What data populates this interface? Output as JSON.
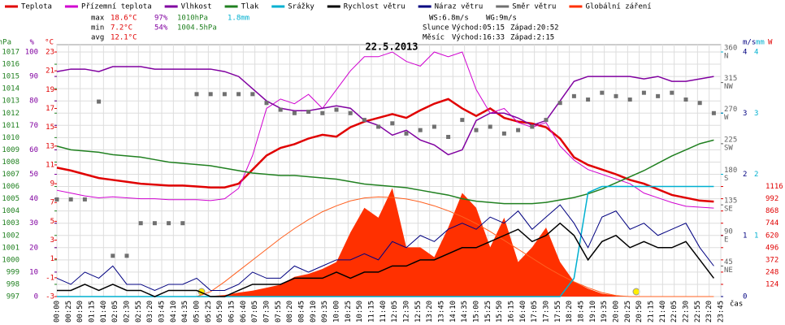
{
  "chart_data": {
    "type": "line",
    "title": "22.5.2013",
    "stats": {
      "max": [
        "max",
        "18.6°C",
        "97%",
        "1010hPa",
        "1.8mm"
      ],
      "min": [
        "min",
        "7.2°C",
        "54%",
        "1004.5hPa"
      ],
      "avg": [
        "avg",
        "12.1°C"
      ]
    },
    "info": [
      [
        "WS:6.8m/s",
        "WG:9m/s"
      ],
      [
        "Slunce",
        "Východ:05:15",
        "Západ:20:52"
      ],
      [
        "Měsíc",
        "Východ:16:33",
        "Západ:2:15"
      ]
    ],
    "axis_labels": {
      "hpa": "hPa",
      "pct": "%",
      "degc": "°C",
      "ms": "m/s",
      "mm": "mm",
      "w": "W",
      "time": "čas"
    },
    "xticks": [
      "00:00",
      "00:25",
      "00:50",
      "01:15",
      "01:40",
      "02:05",
      "02:30",
      "02:55",
      "03:20",
      "03:45",
      "04:10",
      "04:35",
      "05:00",
      "05:25",
      "05:50",
      "06:15",
      "06:40",
      "07:05",
      "07:30",
      "07:55",
      "08:20",
      "08:45",
      "09:10",
      "09:35",
      "10:00",
      "10:25",
      "10:50",
      "11:15",
      "11:40",
      "12:05",
      "12:30",
      "12:55",
      "13:20",
      "13:45",
      "14:10",
      "14:35",
      "15:00",
      "15:25",
      "15:50",
      "16:15",
      "16:40",
      "17:05",
      "17:30",
      "17:55",
      "18:20",
      "18:45",
      "19:10",
      "19:35",
      "20:00",
      "20:25",
      "20:50",
      "21:15",
      "21:40",
      "22:05",
      "22:30",
      "22:55",
      "23:20",
      "23:45"
    ],
    "x": [
      "00:00",
      "00:30",
      "01:00",
      "01:30",
      "02:00",
      "02:30",
      "03:00",
      "03:30",
      "04:00",
      "04:30",
      "05:00",
      "05:30",
      "06:00",
      "06:30",
      "07:00",
      "07:30",
      "08:00",
      "08:30",
      "09:00",
      "09:30",
      "10:00",
      "10:30",
      "11:00",
      "11:30",
      "12:00",
      "12:30",
      "13:00",
      "13:30",
      "14:00",
      "14:30",
      "15:00",
      "15:30",
      "16:00",
      "16:30",
      "17:00",
      "17:30",
      "18:00",
      "18:30",
      "19:00",
      "19:30",
      "20:00",
      "20:30",
      "21:00",
      "21:30",
      "22:00",
      "22:30",
      "23:00",
      "23:30"
    ],
    "axes": {
      "hpa": {
        "lim": [
          997,
          1017
        ],
        "ticks": [
          997,
          998,
          999,
          1000,
          1001,
          1002,
          1003,
          1004,
          1005,
          1006,
          1007,
          1008,
          1009,
          1010,
          1011,
          1012,
          1013,
          1014,
          1015,
          1016,
          1017
        ],
        "color": "#208020",
        "side": "left",
        "col": 24
      },
      "pct": {
        "lim": [
          0,
          100
        ],
        "ticks": [
          0,
          10,
          20,
          30,
          40,
          50,
          60,
          70,
          80,
          90,
          100
        ],
        "color": "#8000a0",
        "side": "left",
        "col": 47
      },
      "degc": {
        "lim": [
          -3,
          23
        ],
        "ticks": [
          -3,
          -1,
          1,
          3,
          5,
          7,
          9,
          11,
          13,
          15,
          17,
          19,
          21,
          23
        ],
        "color": "#e00000",
        "side": "left",
        "col": 67
      },
      "dir": {
        "lim": [
          0,
          360
        ],
        "ticks": [
          {
            "value": 45,
            "label": "NE"
          },
          {
            "value": 90,
            "label": "E"
          },
          {
            "value": 135,
            "label": "SE"
          },
          {
            "value": 180,
            "label": "S"
          },
          {
            "value": 225,
            "label": "SW"
          },
          {
            "value": 270,
            "label": "W"
          },
          {
            "value": 315,
            "label": "NW"
          },
          {
            "value": 360,
            "label": "N"
          }
        ],
        "color": "#606060",
        "side": "right",
        "col": 891
      },
      "ms": {
        "lim": [
          0,
          4
        ],
        "ticks": [
          0,
          1,
          2,
          3,
          4
        ],
        "color": "#000080",
        "side": "right",
        "col": 914
      },
      "mm": {
        "lim": [
          0,
          4
        ],
        "ticks": [
          1,
          2,
          3,
          4
        ],
        "color": "#00b0d0",
        "side": "right",
        "col": 928
      },
      "w": {
        "lim": [
          0,
          2480
        ],
        "ticks": [
          124,
          248,
          372,
          496,
          620,
          744,
          868,
          992,
          1116
        ],
        "color": "#e00000",
        "side": "right",
        "col": 942
      }
    },
    "series": [
      {
        "style": "area",
        "name": "Globální záření",
        "color": "#ff3000",
        "axis": "w",
        "values": [
          0,
          0,
          0,
          0,
          0,
          0,
          0,
          0,
          0,
          0,
          0,
          5,
          15,
          40,
          60,
          90,
          120,
          200,
          230,
          280,
          350,
          650,
          900,
          800,
          1100,
          500,
          500,
          400,
          700,
          1050,
          900,
          500,
          800,
          350,
          500,
          700,
          350,
          150,
          80,
          30,
          10,
          0,
          0,
          0,
          0,
          0,
          0,
          0
        ]
      },
      {
        "style": "line",
        "color": "#ff6020",
        "axis": "w",
        "values": [
          0,
          0,
          0,
          0,
          0,
          0,
          0,
          0,
          0,
          0,
          0,
          50,
          150,
          260,
          370,
          480,
          590,
          690,
          780,
          860,
          920,
          970,
          1000,
          1010,
          1005,
          990,
          960,
          920,
          870,
          810,
          740,
          660,
          570,
          480,
          390,
          300,
          220,
          150,
          90,
          40,
          10,
          0,
          0,
          0,
          0,
          0,
          0,
          0
        ]
      },
      {
        "style": "line",
        "name": "Teplota",
        "color": "#e00000",
        "axis": "degc",
        "width": 2.5,
        "values": [
          10.7,
          10.4,
          10.0,
          9.6,
          9.4,
          9.2,
          9.0,
          8.9,
          8.8,
          8.8,
          8.7,
          8.6,
          8.6,
          9.0,
          10.5,
          12.0,
          12.8,
          13.2,
          13.8,
          14.2,
          14.0,
          15.0,
          15.6,
          16.0,
          16.4,
          16.0,
          16.8,
          17.5,
          18.0,
          17.0,
          16.2,
          17.0,
          16.0,
          15.6,
          15.4,
          15.0,
          13.8,
          11.8,
          11.0,
          10.5,
          10.0,
          9.4,
          9.0,
          8.4,
          7.8,
          7.5,
          7.2,
          7.1
        ]
      },
      {
        "style": "line",
        "name": "Přízemní teplota",
        "color": "#d000d0",
        "axis": "degc",
        "values": [
          8.3,
          8.0,
          7.7,
          7.5,
          7.6,
          7.5,
          7.4,
          7.4,
          7.3,
          7.3,
          7.3,
          7.2,
          7.4,
          8.5,
          12.0,
          17.0,
          18.0,
          17.5,
          18.5,
          17.0,
          19.0,
          21.0,
          22.5,
          22.5,
          23.0,
          22.0,
          21.5,
          23.0,
          22.5,
          23.0,
          19.0,
          16.5,
          17.0,
          15.5,
          15.0,
          15.5,
          13.0,
          11.5,
          10.5,
          10.0,
          9.5,
          9.0,
          8.0,
          7.5,
          7.0,
          6.6,
          6.5,
          6.4
        ]
      },
      {
        "style": "line",
        "name": "Vlhkost",
        "color": "#8000a0",
        "axis": "pct",
        "width": 1.5,
        "values": [
          92,
          93,
          93,
          92,
          94,
          94,
          94,
          93,
          93,
          93,
          93,
          93,
          92,
          90,
          85,
          80,
          77,
          76,
          76,
          77,
          78,
          77,
          72,
          70,
          66,
          68,
          64,
          62,
          58,
          60,
          72,
          75,
          75,
          73,
          70,
          72,
          80,
          88,
          90,
          90,
          90,
          90,
          89,
          90,
          88,
          88,
          89,
          90
        ]
      },
      {
        "style": "line",
        "name": "Tlak",
        "color": "#208020",
        "axis": "hpa",
        "width": 1.5,
        "values": [
          1009.3,
          1009.0,
          1008.9,
          1008.8,
          1008.6,
          1008.5,
          1008.4,
          1008.2,
          1008.0,
          1007.9,
          1007.8,
          1007.7,
          1007.5,
          1007.3,
          1007.1,
          1007.0,
          1006.9,
          1006.9,
          1006.8,
          1006.7,
          1006.6,
          1006.4,
          1006.2,
          1006.1,
          1006.0,
          1005.9,
          1005.7,
          1005.5,
          1005.3,
          1005.0,
          1004.8,
          1004.7,
          1004.6,
          1004.6,
          1004.6,
          1004.7,
          1004.9,
          1005.1,
          1005.4,
          1005.8,
          1006.3,
          1006.8,
          1007.3,
          1007.9,
          1008.5,
          1009.0,
          1009.5,
          1009.8
        ]
      },
      {
        "style": "line",
        "name": "Srážky",
        "color": "#00b0d0",
        "axis": "mm",
        "width": 1.5,
        "values": [
          0,
          0,
          0,
          0,
          0,
          0,
          0,
          0,
          0,
          0,
          0,
          0,
          0,
          0,
          0,
          0,
          0,
          0,
          0,
          0,
          0,
          0,
          0,
          0,
          0,
          0,
          0,
          0,
          0,
          0,
          0,
          0,
          0,
          0,
          0,
          0,
          0,
          0.3,
          1.7,
          1.8,
          1.8,
          1.8,
          1.8,
          1.8,
          1.8,
          1.8,
          1.8,
          1.8
        ]
      },
      {
        "style": "line",
        "name": "Rychlost větru",
        "color": "#000000",
        "axis": "ms",
        "width": 1.5,
        "values": [
          0.1,
          0.1,
          0.2,
          0.1,
          0.2,
          0.1,
          0.1,
          0.0,
          0.1,
          0.1,
          0.1,
          0.0,
          0.0,
          0.1,
          0.2,
          0.2,
          0.2,
          0.3,
          0.3,
          0.3,
          0.4,
          0.3,
          0.4,
          0.4,
          0.5,
          0.5,
          0.6,
          0.6,
          0.7,
          0.8,
          0.8,
          0.9,
          1.0,
          1.1,
          0.9,
          1.0,
          1.2,
          1.0,
          0.6,
          0.9,
          1.0,
          0.8,
          0.9,
          0.8,
          0.8,
          0.9,
          0.6,
          0.3
        ]
      },
      {
        "style": "line",
        "name": "Náraz větru",
        "color": "#000080",
        "axis": "ms",
        "values": [
          0.3,
          0.2,
          0.4,
          0.3,
          0.5,
          0.2,
          0.2,
          0.1,
          0.2,
          0.2,
          0.3,
          0.1,
          0.1,
          0.2,
          0.4,
          0.3,
          0.3,
          0.5,
          0.4,
          0.5,
          0.6,
          0.6,
          0.7,
          0.6,
          0.9,
          0.8,
          1.0,
          0.9,
          1.1,
          1.2,
          1.1,
          1.3,
          1.2,
          1.4,
          1.1,
          1.3,
          1.5,
          1.2,
          0.8,
          1.3,
          1.4,
          1.1,
          1.2,
          1.0,
          1.1,
          1.2,
          0.8,
          0.5
        ]
      },
      {
        "style": "points",
        "name": "Směr větru",
        "color": "#707070",
        "axis": "dir",
        "values": [
          143,
          143,
          143,
          287,
          60,
          60,
          108,
          108,
          108,
          108,
          298,
          298,
          298,
          298,
          298,
          285,
          275,
          270,
          272,
          270,
          275,
          270,
          260,
          250,
          255,
          240,
          245,
          250,
          235,
          260,
          245,
          250,
          240,
          245,
          250,
          260,
          285,
          295,
          290,
          300,
          295,
          290,
          300,
          295,
          300,
          290,
          285,
          270
        ]
      }
    ]
  }
}
